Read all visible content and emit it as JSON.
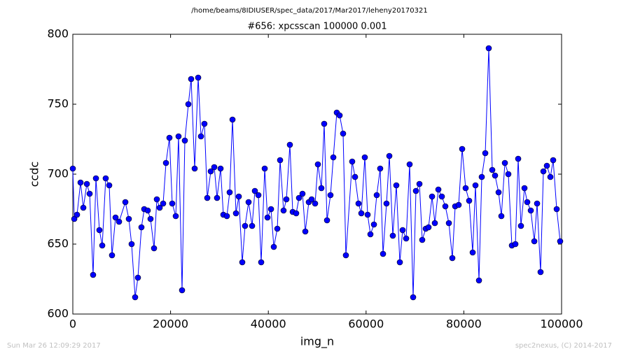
{
  "chart_data": {
    "type": "line",
    "suptitle": "/home/beams/8IDIUSER/spec_data/2017/Mar2017/leheny20170321",
    "title": "#656: xpcsscan 100000 0.001",
    "xlabel": "img_n",
    "ylabel": "ccdc",
    "xlim": [
      0,
      100000
    ],
    "ylim": [
      600,
      800
    ],
    "xticks": [
      0,
      20000,
      40000,
      60000,
      80000,
      100000
    ],
    "yticks": [
      600,
      650,
      700,
      750,
      800
    ],
    "color": "#0000ff",
    "x": [
      0,
      300,
      860,
      1580,
      2150,
      2870,
      3440,
      4150,
      4730,
      5440,
      6020,
      6730,
      7450,
      8020,
      8740,
      9460,
      10750,
      11460,
      12030,
      12750,
      13320,
      14040,
      14610,
      15330,
      15900,
      16620,
      17190,
      17770,
      18480,
      19060,
      19770,
      20340,
      21060,
      21630,
      22350,
      22920,
      23640,
      24210,
      24930,
      25650,
      26220,
      26930,
      27510,
      28220,
      28940,
      29510,
      30230,
      30800,
      31520,
      32090,
      32670,
      33380,
      33960,
      34670,
      35240,
      35960,
      36680,
      37250,
      37970,
      38540,
      39260,
      39830,
      40550,
      41120,
      41840,
      42410,
      43120,
      43700,
      44410,
      44990,
      45700,
      46280,
      46990,
      47570,
      48280,
      48860,
      49570,
      50140,
      50860,
      51430,
      52010,
      52720,
      53300,
      54010,
      54590,
      55300,
      55870,
      57160,
      57740,
      58450,
      59030,
      59740,
      60320,
      60890,
      61610,
      62180,
      62890,
      63470,
      64180,
      64760,
      65470,
      66190,
      66910,
      67480,
      68200,
      68910,
      69630,
      70200,
      70920,
      71490,
      72210,
      72780,
      73500,
      74070,
      74790,
      75500,
      76220,
      76940,
      77650,
      78230,
      78940,
      79660,
      80370,
      81090,
      81810,
      82380,
      83100,
      83670,
      84390,
      85100,
      85820,
      86390,
      87110,
      87680,
      88400,
      89110,
      89830,
      90550,
      91120,
      91690,
      92410,
      92980,
      93700,
      94420,
      94990,
      95700,
      96280,
      96990,
      97710,
      98280,
      99000,
      99710
    ],
    "values": [
      704,
      668,
      671,
      694,
      676,
      693,
      686,
      628,
      697,
      660,
      649,
      697,
      692,
      642,
      669,
      666,
      680,
      668,
      650,
      612,
      626,
      662,
      675,
      674,
      668,
      647,
      682,
      676,
      679,
      708,
      726,
      679,
      670,
      727,
      617,
      724,
      750,
      768,
      704,
      769,
      727,
      736,
      683,
      702,
      705,
      683,
      704,
      671,
      670,
      687,
      739,
      672,
      684,
      637,
      663,
      680,
      663,
      688,
      685,
      637,
      704,
      669,
      675,
      648,
      661,
      710,
      674,
      682,
      721,
      673,
      672,
      683,
      686,
      659,
      680,
      682,
      679,
      707,
      690,
      736,
      667,
      685,
      712,
      744,
      742,
      729,
      642,
      709,
      698,
      679,
      672,
      712,
      671,
      657,
      664,
      685,
      704,
      643,
      679,
      713,
      656,
      692,
      637,
      660,
      654,
      707,
      612,
      688,
      693,
      653,
      661,
      662,
      684,
      665,
      689,
      684,
      677,
      665,
      640,
      677,
      678,
      718,
      690,
      681,
      644,
      692,
      624,
      698,
      715,
      790,
      703,
      699,
      687,
      670,
      708,
      700,
      649,
      650,
      711,
      663,
      690,
      680,
      674,
      652,
      679,
      630,
      702,
      706,
      698,
      710,
      675,
      652
    ]
  },
  "footer": {
    "left": "Sun Mar 26 12:09:29 2017",
    "right": "spec2nexus, (C) 2014-2017"
  }
}
